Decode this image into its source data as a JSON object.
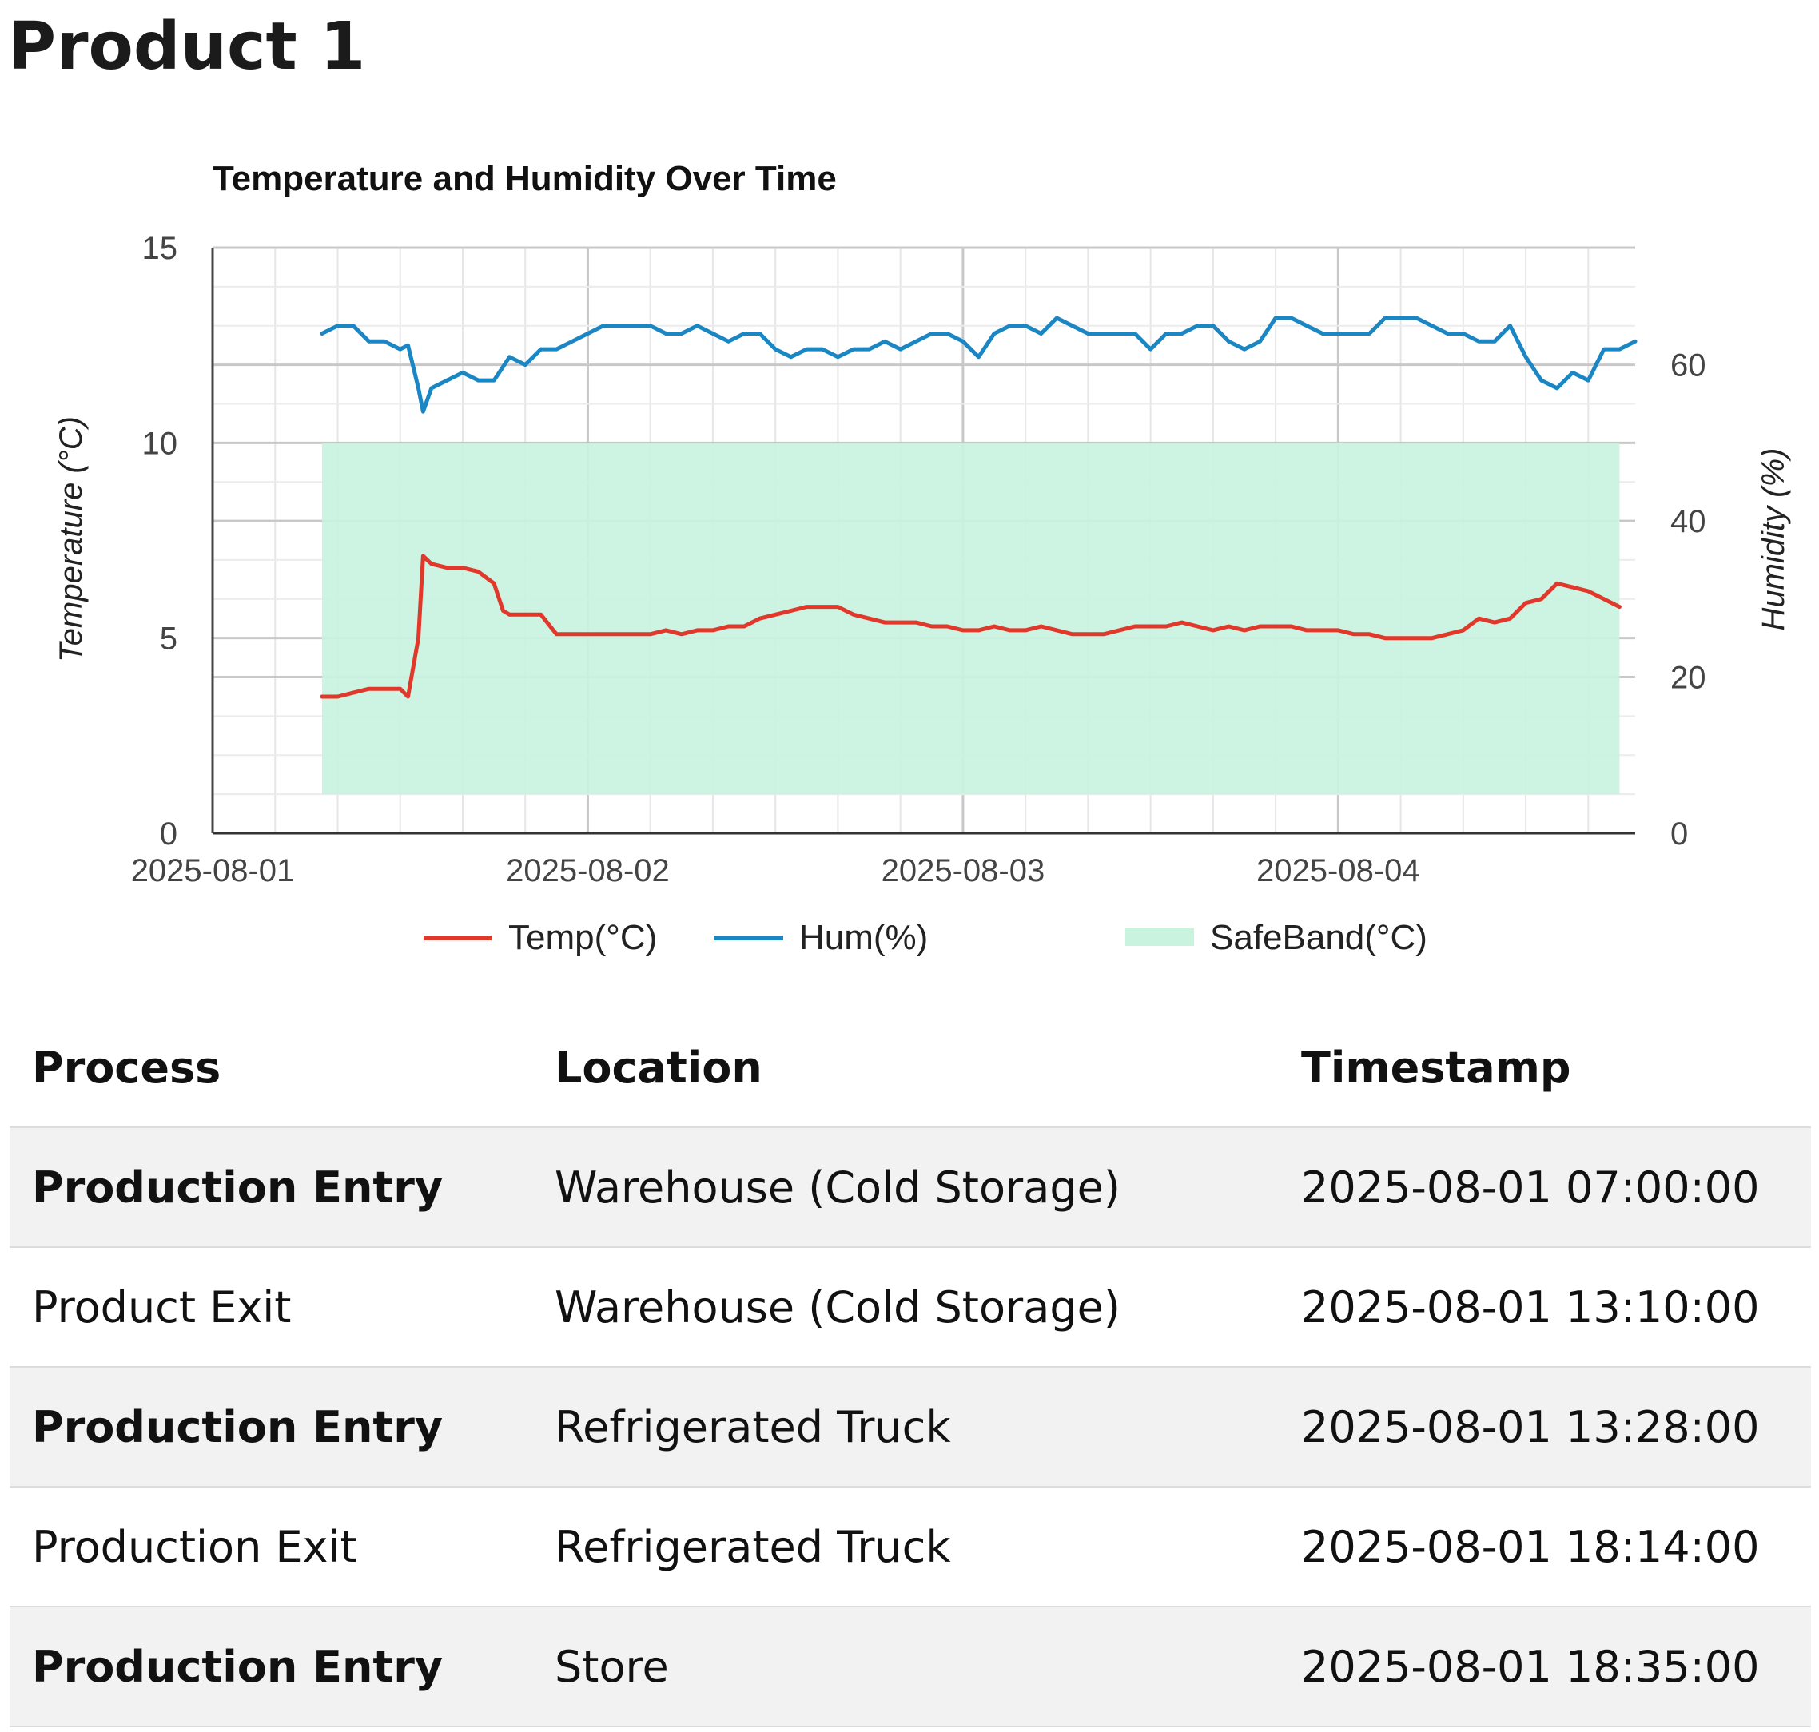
{
  "page": {
    "title": "Product 1"
  },
  "chart_data": {
    "type": "line",
    "title": "Temperature and Humidity Over Time",
    "x_ticks": [
      "2025-08-01",
      "2025-08-02",
      "2025-08-03",
      "2025-08-04"
    ],
    "y_left": {
      "label": "Temperature (°C)",
      "ticks": [
        "0",
        "5",
        "10",
        "15"
      ],
      "range": [
        0,
        15
      ]
    },
    "y_right": {
      "label": "Humidity (%)",
      "ticks": [
        "0",
        "20",
        "40",
        "60"
      ],
      "range": [
        0,
        75
      ]
    },
    "x_range_days": [
      "2025-08-01 00:00",
      "2025-08-04 19:00"
    ],
    "grid": true,
    "legend_position": "bottom",
    "safe_band": {
      "name": "SafeBand(°C)",
      "min": 1,
      "max": 10,
      "start": "2025-08-01 07:00",
      "end": "2025-08-04 18:00",
      "color": "#c9f2df"
    },
    "series": [
      {
        "name": "Temp(°C)",
        "axis": "left",
        "color": "#e0392b",
        "points": [
          [
            "2025-08-01 07:00",
            3.5
          ],
          [
            "2025-08-01 08:00",
            3.5
          ],
          [
            "2025-08-01 09:00",
            3.6
          ],
          [
            "2025-08-01 10:00",
            3.7
          ],
          [
            "2025-08-01 11:00",
            3.7
          ],
          [
            "2025-08-01 12:00",
            3.7
          ],
          [
            "2025-08-01 12:30",
            3.5
          ],
          [
            "2025-08-01 13:10",
            5.0
          ],
          [
            "2025-08-01 13:28",
            7.1
          ],
          [
            "2025-08-01 14:00",
            6.9
          ],
          [
            "2025-08-01 15:00",
            6.8
          ],
          [
            "2025-08-01 16:00",
            6.8
          ],
          [
            "2025-08-01 17:00",
            6.7
          ],
          [
            "2025-08-01 18:00",
            6.4
          ],
          [
            "2025-08-01 18:35",
            5.7
          ],
          [
            "2025-08-01 19:00",
            5.6
          ],
          [
            "2025-08-01 20:00",
            5.6
          ],
          [
            "2025-08-01 21:00",
            5.6
          ],
          [
            "2025-08-01 22:00",
            5.1
          ],
          [
            "2025-08-01 23:00",
            5.1
          ],
          [
            "2025-08-02 00:00",
            5.1
          ],
          [
            "2025-08-02 02:00",
            5.1
          ],
          [
            "2025-08-02 04:00",
            5.1
          ],
          [
            "2025-08-02 05:00",
            5.2
          ],
          [
            "2025-08-02 06:00",
            5.1
          ],
          [
            "2025-08-02 07:00",
            5.2
          ],
          [
            "2025-08-02 08:00",
            5.2
          ],
          [
            "2025-08-02 09:00",
            5.3
          ],
          [
            "2025-08-02 10:00",
            5.3
          ],
          [
            "2025-08-02 11:00",
            5.5
          ],
          [
            "2025-08-02 12:00",
            5.6
          ],
          [
            "2025-08-02 13:00",
            5.7
          ],
          [
            "2025-08-02 14:00",
            5.8
          ],
          [
            "2025-08-02 15:00",
            5.8
          ],
          [
            "2025-08-02 16:00",
            5.8
          ],
          [
            "2025-08-02 17:00",
            5.6
          ],
          [
            "2025-08-02 18:00",
            5.5
          ],
          [
            "2025-08-02 19:00",
            5.4
          ],
          [
            "2025-08-02 20:00",
            5.4
          ],
          [
            "2025-08-02 21:00",
            5.4
          ],
          [
            "2025-08-02 22:00",
            5.3
          ],
          [
            "2025-08-02 23:00",
            5.3
          ],
          [
            "2025-08-03 00:00",
            5.2
          ],
          [
            "2025-08-03 01:00",
            5.2
          ],
          [
            "2025-08-03 02:00",
            5.3
          ],
          [
            "2025-08-03 03:00",
            5.2
          ],
          [
            "2025-08-03 04:00",
            5.2
          ],
          [
            "2025-08-03 05:00",
            5.3
          ],
          [
            "2025-08-03 06:00",
            5.2
          ],
          [
            "2025-08-03 07:00",
            5.1
          ],
          [
            "2025-08-03 08:00",
            5.1
          ],
          [
            "2025-08-03 09:00",
            5.1
          ],
          [
            "2025-08-03 10:00",
            5.2
          ],
          [
            "2025-08-03 11:00",
            5.3
          ],
          [
            "2025-08-03 12:00",
            5.3
          ],
          [
            "2025-08-03 13:00",
            5.3
          ],
          [
            "2025-08-03 14:00",
            5.4
          ],
          [
            "2025-08-03 15:00",
            5.3
          ],
          [
            "2025-08-03 16:00",
            5.2
          ],
          [
            "2025-08-03 17:00",
            5.3
          ],
          [
            "2025-08-03 18:00",
            5.2
          ],
          [
            "2025-08-03 19:00",
            5.3
          ],
          [
            "2025-08-03 20:00",
            5.3
          ],
          [
            "2025-08-03 21:00",
            5.3
          ],
          [
            "2025-08-03 22:00",
            5.2
          ],
          [
            "2025-08-03 23:00",
            5.2
          ],
          [
            "2025-08-04 00:00",
            5.2
          ],
          [
            "2025-08-04 01:00",
            5.1
          ],
          [
            "2025-08-04 02:00",
            5.1
          ],
          [
            "2025-08-04 03:00",
            5.0
          ],
          [
            "2025-08-04 04:00",
            5.0
          ],
          [
            "2025-08-04 05:00",
            5.0
          ],
          [
            "2025-08-04 06:00",
            5.0
          ],
          [
            "2025-08-04 07:00",
            5.1
          ],
          [
            "2025-08-04 08:00",
            5.2
          ],
          [
            "2025-08-04 09:00",
            5.5
          ],
          [
            "2025-08-04 10:00",
            5.4
          ],
          [
            "2025-08-04 11:00",
            5.5
          ],
          [
            "2025-08-04 12:00",
            5.9
          ],
          [
            "2025-08-04 13:00",
            6.0
          ],
          [
            "2025-08-04 14:00",
            6.4
          ],
          [
            "2025-08-04 15:00",
            6.3
          ],
          [
            "2025-08-04 16:00",
            6.2
          ],
          [
            "2025-08-04 17:00",
            6.0
          ],
          [
            "2025-08-04 18:00",
            5.8
          ]
        ]
      },
      {
        "name": "Hum(%)",
        "axis": "right",
        "color": "#1a87c4",
        "points": [
          [
            "2025-08-01 07:00",
            64
          ],
          [
            "2025-08-01 08:00",
            65
          ],
          [
            "2025-08-01 09:00",
            65
          ],
          [
            "2025-08-01 10:00",
            63
          ],
          [
            "2025-08-01 11:00",
            63
          ],
          [
            "2025-08-01 12:00",
            62
          ],
          [
            "2025-08-01 12:30",
            62.5
          ],
          [
            "2025-08-01 13:10",
            57
          ],
          [
            "2025-08-01 13:28",
            54
          ],
          [
            "2025-08-01 14:00",
            57
          ],
          [
            "2025-08-01 15:00",
            58
          ],
          [
            "2025-08-01 16:00",
            59
          ],
          [
            "2025-08-01 17:00",
            58
          ],
          [
            "2025-08-01 18:00",
            58
          ],
          [
            "2025-08-01 19:00",
            61
          ],
          [
            "2025-08-01 20:00",
            60
          ],
          [
            "2025-08-01 21:00",
            62
          ],
          [
            "2025-08-01 22:00",
            62
          ],
          [
            "2025-08-01 23:00",
            63
          ],
          [
            "2025-08-02 00:00",
            64
          ],
          [
            "2025-08-02 01:00",
            65
          ],
          [
            "2025-08-02 02:00",
            65
          ],
          [
            "2025-08-02 03:00",
            65
          ],
          [
            "2025-08-02 04:00",
            65
          ],
          [
            "2025-08-02 05:00",
            64
          ],
          [
            "2025-08-02 06:00",
            64
          ],
          [
            "2025-08-02 07:00",
            65
          ],
          [
            "2025-08-02 08:00",
            64
          ],
          [
            "2025-08-02 09:00",
            63
          ],
          [
            "2025-08-02 10:00",
            64
          ],
          [
            "2025-08-02 11:00",
            64
          ],
          [
            "2025-08-02 12:00",
            62
          ],
          [
            "2025-08-02 13:00",
            61
          ],
          [
            "2025-08-02 14:00",
            62
          ],
          [
            "2025-08-02 15:00",
            62
          ],
          [
            "2025-08-02 16:00",
            61
          ],
          [
            "2025-08-02 17:00",
            62
          ],
          [
            "2025-08-02 18:00",
            62
          ],
          [
            "2025-08-02 19:00",
            63
          ],
          [
            "2025-08-02 20:00",
            62
          ],
          [
            "2025-08-02 21:00",
            63
          ],
          [
            "2025-08-02 22:00",
            64
          ],
          [
            "2025-08-02 23:00",
            64
          ],
          [
            "2025-08-03 00:00",
            63
          ],
          [
            "2025-08-03 01:00",
            61
          ],
          [
            "2025-08-03 02:00",
            64
          ],
          [
            "2025-08-03 03:00",
            65
          ],
          [
            "2025-08-03 04:00",
            65
          ],
          [
            "2025-08-03 05:00",
            64
          ],
          [
            "2025-08-03 06:00",
            66
          ],
          [
            "2025-08-03 07:00",
            65
          ],
          [
            "2025-08-03 08:00",
            64
          ],
          [
            "2025-08-03 09:00",
            64
          ],
          [
            "2025-08-03 10:00",
            64
          ],
          [
            "2025-08-03 11:00",
            64
          ],
          [
            "2025-08-03 12:00",
            62
          ],
          [
            "2025-08-03 13:00",
            64
          ],
          [
            "2025-08-03 14:00",
            64
          ],
          [
            "2025-08-03 15:00",
            65
          ],
          [
            "2025-08-03 16:00",
            65
          ],
          [
            "2025-08-03 17:00",
            63
          ],
          [
            "2025-08-03 18:00",
            62
          ],
          [
            "2025-08-03 19:00",
            63
          ],
          [
            "2025-08-03 20:00",
            66
          ],
          [
            "2025-08-03 21:00",
            66
          ],
          [
            "2025-08-03 22:00",
            65
          ],
          [
            "2025-08-03 23:00",
            64
          ],
          [
            "2025-08-04 00:00",
            64
          ],
          [
            "2025-08-04 01:00",
            64
          ],
          [
            "2025-08-04 02:00",
            64
          ],
          [
            "2025-08-04 03:00",
            66
          ],
          [
            "2025-08-04 04:00",
            66
          ],
          [
            "2025-08-04 05:00",
            66
          ],
          [
            "2025-08-04 06:00",
            65
          ],
          [
            "2025-08-04 07:00",
            64
          ],
          [
            "2025-08-04 08:00",
            64
          ],
          [
            "2025-08-04 09:00",
            63
          ],
          [
            "2025-08-04 10:00",
            63
          ],
          [
            "2025-08-04 11:00",
            65
          ],
          [
            "2025-08-04 12:00",
            61
          ],
          [
            "2025-08-04 13:00",
            58
          ],
          [
            "2025-08-04 14:00",
            57
          ],
          [
            "2025-08-04 15:00",
            59
          ],
          [
            "2025-08-04 16:00",
            58
          ],
          [
            "2025-08-04 17:00",
            62
          ],
          [
            "2025-08-04 18:00",
            62
          ],
          [
            "2025-08-04 19:00",
            63
          ]
        ]
      }
    ]
  },
  "table": {
    "headers": {
      "process": "Process",
      "location": "Location",
      "timestamp": "Timestamp"
    },
    "rows": [
      {
        "process": "Production Entry",
        "location": "Warehouse (Cold Storage)",
        "timestamp": "2025-08-01 07:00:00"
      },
      {
        "process": "Product Exit",
        "location": "Warehouse (Cold Storage)",
        "timestamp": "2025-08-01 13:10:00"
      },
      {
        "process": "Production Entry",
        "location": "Refrigerated Truck",
        "timestamp": "2025-08-01 13:28:00"
      },
      {
        "process": "Production Exit",
        "location": "Refrigerated Truck",
        "timestamp": "2025-08-01 18:14:00"
      },
      {
        "process": "Production Entry",
        "location": "Store",
        "timestamp": "2025-08-01 18:35:00"
      }
    ]
  }
}
